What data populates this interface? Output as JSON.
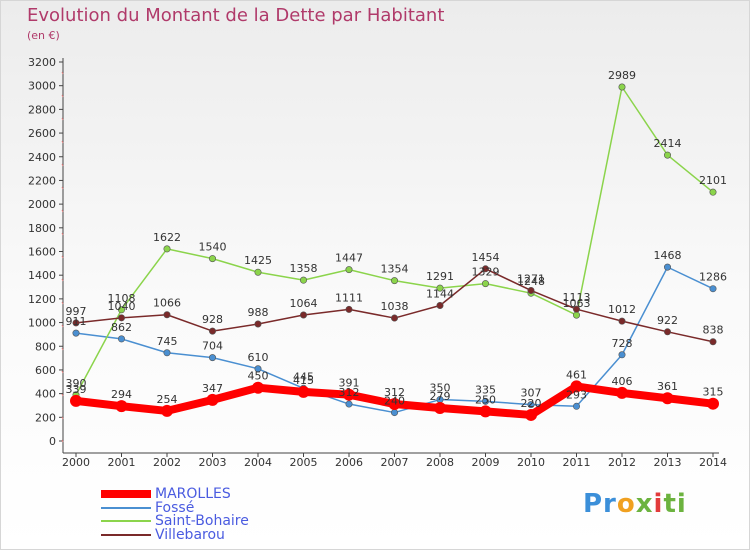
{
  "header": {
    "title": "Evolution du Montant de la Dette par Habitant",
    "subtitle": "(en €)"
  },
  "logo": {
    "text": "Proxiti"
  },
  "chart_data": {
    "type": "line",
    "x": [
      "2000",
      "2001",
      "2002",
      "2003",
      "2004",
      "2005",
      "2006",
      "2007",
      "2008",
      "2009",
      "2010",
      "2011",
      "2012",
      "2013",
      "2014"
    ],
    "yticks": [
      0,
      200,
      400,
      600,
      800,
      1000,
      1200,
      1400,
      1600,
      1800,
      2000,
      2200,
      2400,
      2600,
      2800,
      3000,
      3200
    ],
    "ylim": [
      0,
      3200
    ],
    "grid": false,
    "legend_position": "bottom-left",
    "series": [
      {
        "name": "MAROLLES",
        "color": "#ff0000",
        "width": 8,
        "values": [
          339,
          294,
          254,
          347,
          450,
          415,
          391,
          312,
          279,
          250,
          220,
          461,
          406,
          361,
          315
        ],
        "labels": [
          "339",
          "294",
          "254",
          "347",
          "450",
          "415",
          "391",
          "312",
          "279",
          "250",
          "220",
          "461",
          "406",
          "361",
          "315"
        ]
      },
      {
        "name": "Fossé",
        "color": "#4a8fd1",
        "width": 1.5,
        "values": [
          911,
          862,
          745,
          704,
          610,
          445,
          312,
          240,
          350,
          335,
          307,
          293,
          728,
          1468,
          1286
        ],
        "labels": [
          "911",
          "862",
          "745",
          "704",
          "610",
          "445",
          "312",
          "240",
          "350",
          "335",
          "307",
          "293",
          "728",
          "1468",
          "1286"
        ]
      },
      {
        "name": "Saint-Bohaire",
        "color": "#8bd44b",
        "width": 1.5,
        "values": [
          390,
          1108,
          1622,
          1540,
          1425,
          1358,
          1447,
          1354,
          1291,
          1329,
          1248,
          1063,
          2989,
          2414,
          2101
        ],
        "labels": [
          "390",
          "1108",
          "1622",
          "1540",
          "1425",
          "1358",
          "1447",
          "1354",
          "1291",
          "1329",
          "1248",
          "1063",
          "2989",
          "2414",
          "2101"
        ]
      },
      {
        "name": "Villebarou",
        "color": "#7a2a2a",
        "width": 1.5,
        "values": [
          997,
          1040,
          1066,
          928,
          988,
          1064,
          1111,
          1038,
          1144,
          1454,
          1271,
          1113,
          1012,
          922,
          838
        ],
        "labels": [
          "997",
          "1040",
          "1066",
          "928",
          "988",
          "1064",
          "1111",
          "1038",
          "1144",
          "1454",
          "1271",
          "1113",
          "1012",
          "922",
          "838"
        ]
      }
    ]
  }
}
